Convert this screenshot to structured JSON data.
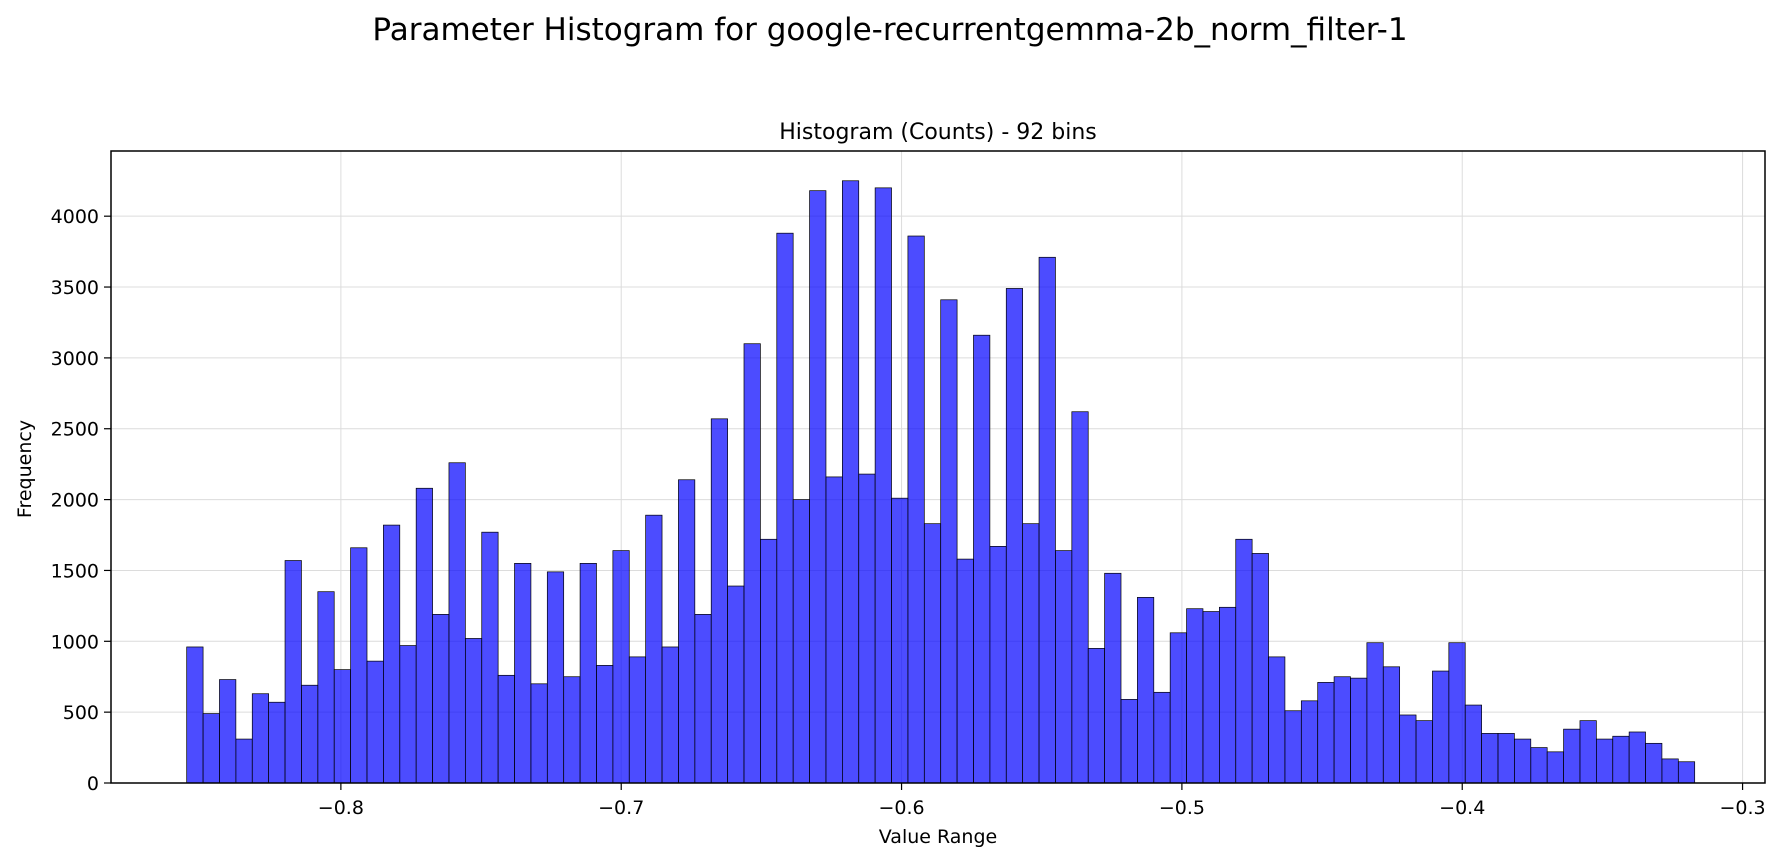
{
  "figure": {
    "suptitle": "Parameter Histogram for google-recurrentgemma-2b_norm_filter-1"
  },
  "chart_data": {
    "type": "bar",
    "title": "Histogram (Counts) - 92 bins",
    "xlabel": "Value Range",
    "ylabel": "Frequency",
    "xlim": [
      -0.882,
      -0.292
    ],
    "ylim": [
      0,
      4460
    ],
    "bin_start": -0.855,
    "bin_width": 0.005847,
    "grid": true,
    "bar_color": "#0000ff",
    "bar_opacity": 0.7,
    "edge_color": "#000000",
    "xticks": [
      -0.8,
      -0.7,
      -0.6,
      -0.5,
      -0.4,
      -0.3
    ],
    "xtick_labels": [
      "−0.8",
      "−0.7",
      "−0.6",
      "−0.5",
      "−0.4",
      "−0.3"
    ],
    "yticks": [
      0,
      500,
      1000,
      1500,
      2000,
      2500,
      3000,
      3500,
      4000
    ],
    "ytick_labels": [
      "0",
      "500",
      "1000",
      "1500",
      "2000",
      "2500",
      "3000",
      "3500",
      "4000"
    ],
    "values": [
      960,
      490,
      730,
      310,
      630,
      570,
      1570,
      690,
      1350,
      800,
      1660,
      860,
      1820,
      970,
      2080,
      1190,
      2260,
      1020,
      1770,
      760,
      1550,
      700,
      1490,
      750,
      1550,
      830,
      1640,
      890,
      1890,
      960,
      2140,
      1190,
      2570,
      1390,
      3100,
      1720,
      3880,
      2000,
      4180,
      2160,
      4250,
      2180,
      4200,
      2010,
      3860,
      1830,
      3410,
      1580,
      3160,
      1670,
      3490,
      1830,
      3710,
      1640,
      2620,
      950,
      1480,
      590,
      1310,
      640,
      1060,
      1230,
      1210,
      1240,
      1720,
      1620,
      890,
      510,
      580,
      710,
      750,
      740,
      990,
      820,
      480,
      440,
      790,
      990,
      550,
      350,
      350,
      310,
      250,
      220,
      380,
      440,
      310,
      330,
      360,
      280,
      170,
      150
    ]
  }
}
